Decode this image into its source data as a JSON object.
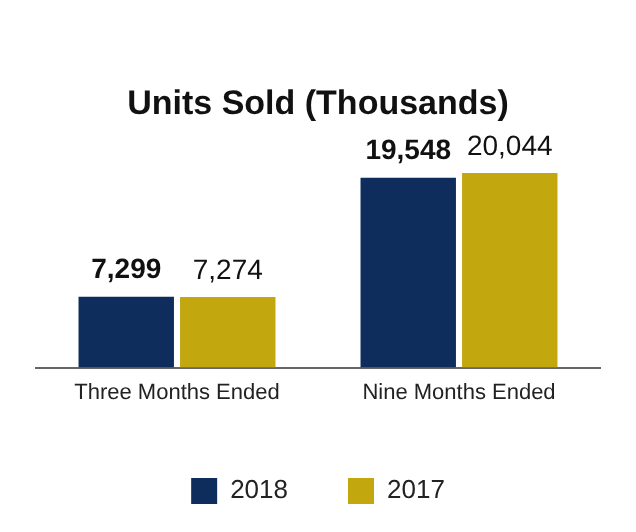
{
  "chart_data": {
    "type": "bar",
    "title": "Units Sold (Thousands)",
    "categories": [
      "Three Months Ended",
      "Nine Months Ended"
    ],
    "series": [
      {
        "name": "2018",
        "color": "#0f2d5c",
        "values": [
          7299,
          19548
        ],
        "value_labels": [
          "7,299",
          "19,548"
        ]
      },
      {
        "name": "2017",
        "color": "#c2a70f",
        "values": [
          7274,
          20044
        ],
        "value_labels": [
          "7,274",
          "20,044"
        ]
      }
    ],
    "grid": false,
    "legend": "bottom"
  }
}
